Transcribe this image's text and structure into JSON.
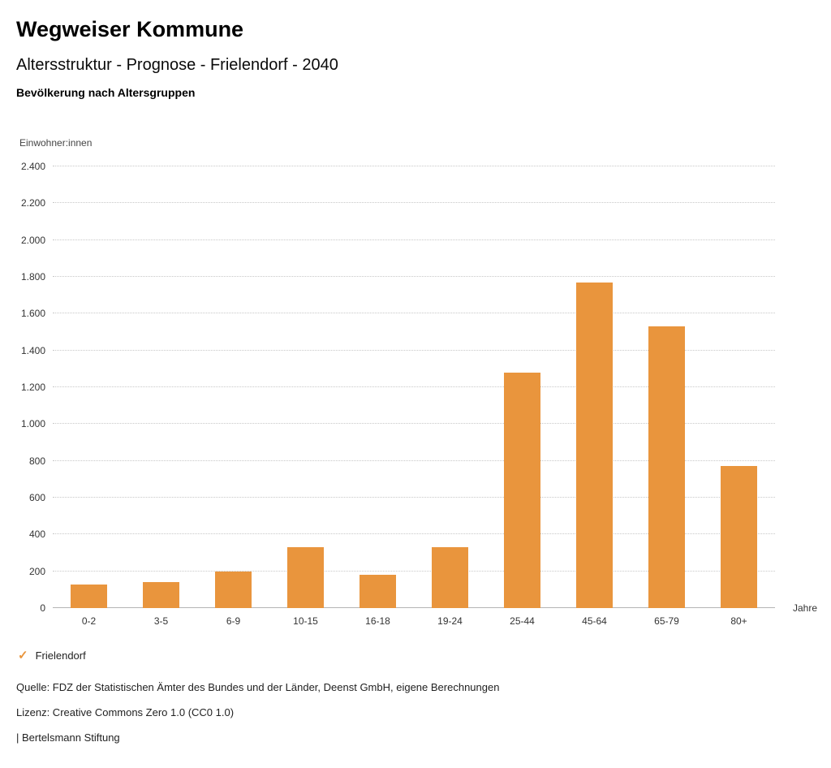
{
  "header": {
    "brand": "Wegweiser Kommune",
    "title": "Altersstruktur - Prognose - Frielendorf - 2040",
    "subtitle": "Bevölkerung nach Altersgruppen"
  },
  "chart_data": {
    "type": "bar",
    "title": "Altersstruktur - Prognose - Frielendorf - 2040",
    "subtitle": "Bevölkerung nach Altersgruppen",
    "categories": [
      "0-2",
      "3-5",
      "6-9",
      "10-15",
      "16-18",
      "19-24",
      "25-44",
      "45-64",
      "65-79",
      "80+"
    ],
    "series": [
      {
        "name": "Frielendorf",
        "values": [
          130,
          140,
          200,
          330,
          180,
          330,
          1280,
          1770,
          1530,
          770
        ]
      }
    ],
    "ylabel": "Einwohner:innen",
    "xlabel": "Jahre",
    "ylim": [
      0,
      2400
    ],
    "ytick_step": 200,
    "ytick_labels": [
      "0",
      "200",
      "400",
      "600",
      "800",
      "1.000",
      "1.200",
      "1.400",
      "1.600",
      "1.800",
      "2.000",
      "2.200",
      "2.400"
    ],
    "grid": true,
    "bar_color": "#e9953d",
    "legend_position": "bottom-left"
  },
  "legend": {
    "check_icon": "✓",
    "label": "Frielendorf",
    "accent_color": "#e9953d"
  },
  "footer": {
    "source": "Quelle: FDZ der Statistischen Ämter des Bundes und der Länder, Deenst GmbH, eigene Berechnungen",
    "license": "Lizenz: Creative Commons Zero 1.0 (CC0 1.0)",
    "attribution": "| Bertelsmann Stiftung"
  }
}
